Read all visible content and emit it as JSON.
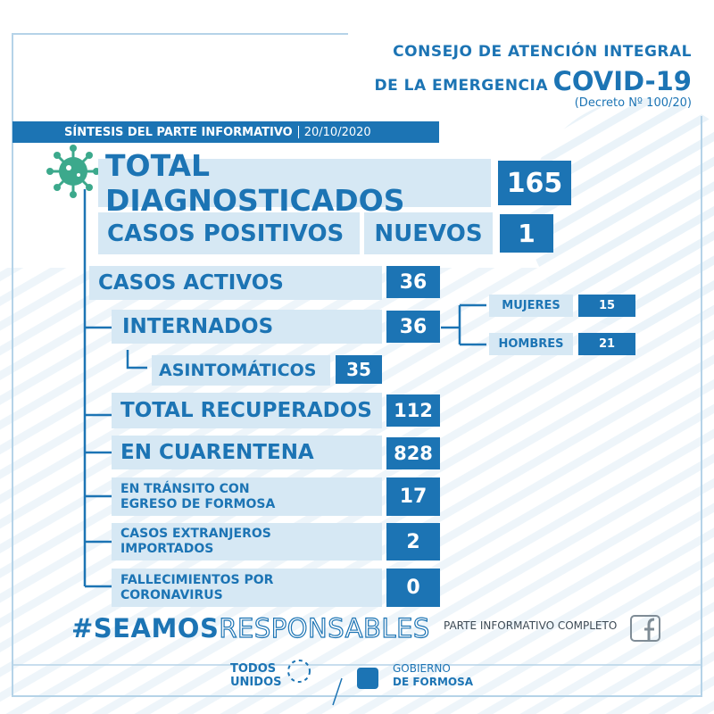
{
  "header": {
    "line1": "CONSEJO DE ATENCIÓN INTEGRAL",
    "line2": "DE LA EMERGENCIA",
    "covid": "COVID-19",
    "decree": "(Decreto Nº 100/20)"
  },
  "subtitle": {
    "label": "SÍNTESIS DEL PARTE INFORMATIVO",
    "date": "20/10/2020"
  },
  "rows": {
    "total": {
      "label": "TOTAL DIAGNOSTICADOS",
      "value": 165
    },
    "positivos": {
      "label": "CASOS POSITIVOS",
      "sublabel": "NUEVOS",
      "value": 1
    },
    "activos": {
      "label": "CASOS ACTIVOS",
      "value": 36
    },
    "internados": {
      "label": "INTERNADOS",
      "value": 36
    },
    "mujeres": {
      "label": "MUJERES",
      "value": 15
    },
    "hombres": {
      "label": "HOMBRES",
      "value": 21
    },
    "asintomaticos": {
      "label": "ASINTOMÁTICOS",
      "value": 35
    },
    "recuperados": {
      "label": "TOTAL RECUPERADOS",
      "value": 112
    },
    "cuarentena": {
      "label": "EN CUARENTENA",
      "value": 828
    },
    "transito": {
      "label": [
        "EN TRÁNSITO CON",
        "EGRESO DE FORMOSA"
      ],
      "value": 17
    },
    "extranjeros": {
      "label": [
        "CASOS EXTRANJEROS",
        "IMPORTADOS"
      ],
      "value": 2
    },
    "fallecimientos": {
      "label": [
        "FALLECIMIENTOS POR",
        "CORONAVIRUS"
      ],
      "value": 0
    }
  },
  "footer": {
    "hashtag": "#SEAMOS",
    "hashtag2": "RESPONSABLES",
    "link": "PARTE INFORMATIVO COMPLETO",
    "logo1": [
      "TODOS",
      "UNIDOS"
    ],
    "logo2": [
      "GOBIERNO",
      "DE FORMOSA"
    ]
  }
}
